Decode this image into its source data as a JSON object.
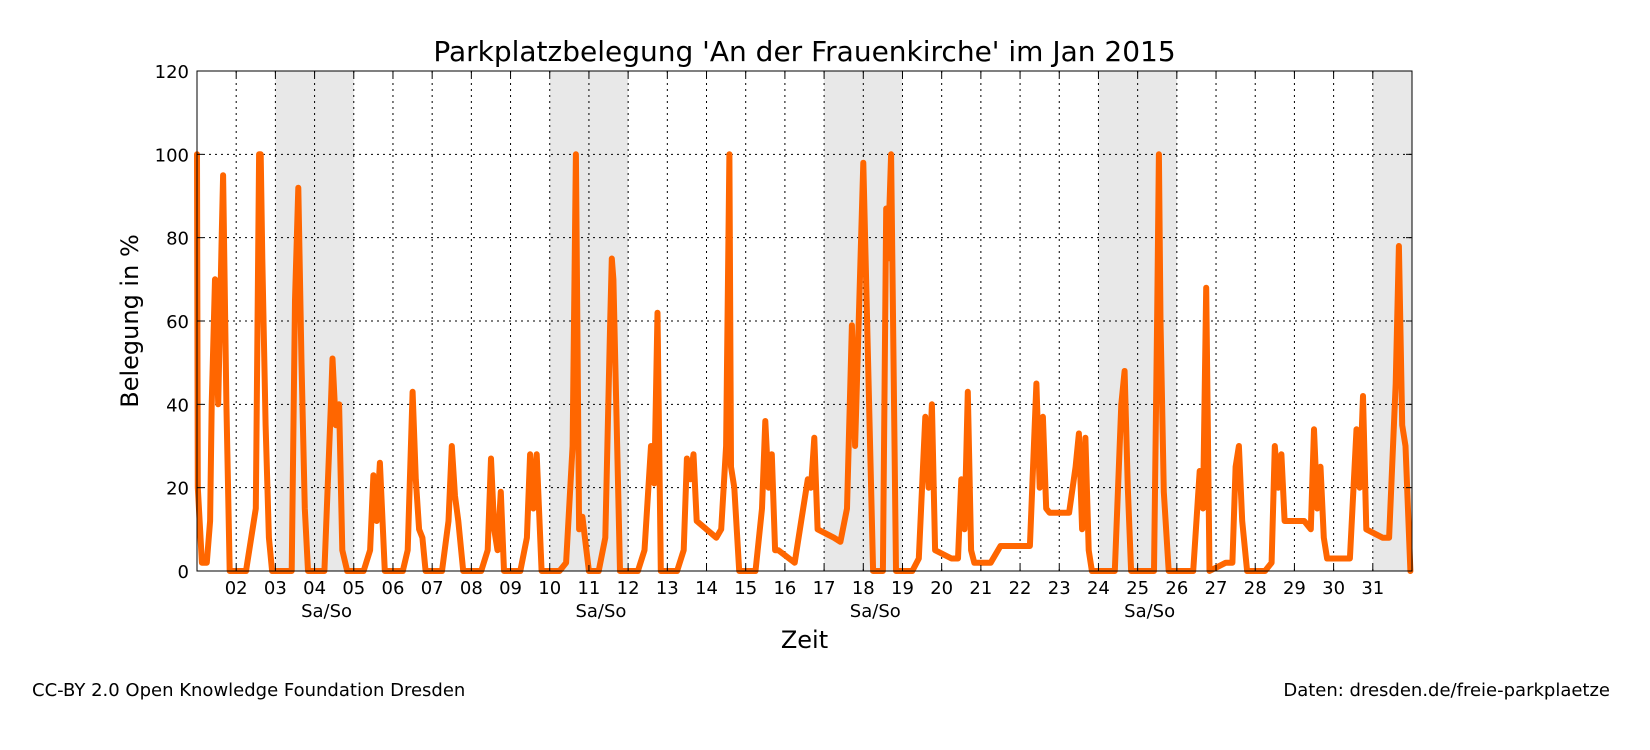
{
  "chart_data": {
    "type": "line",
    "title": "Parkplatzbelegung 'An der Frauenkirche' im Jan 2015",
    "xlabel": "Zeit",
    "ylabel": "Belegung in %",
    "ylim": [
      0,
      120
    ],
    "yticks": [
      "0",
      "20",
      "40",
      "60",
      "80",
      "100",
      "120"
    ],
    "xlim": [
      "2015-01-01",
      "2015-02-01"
    ],
    "xticks": [
      "02",
      "03",
      "04",
      "05",
      "06",
      "07",
      "08",
      "09",
      "10",
      "11",
      "12",
      "13",
      "14",
      "15",
      "16",
      "17",
      "18",
      "19",
      "20",
      "21",
      "22",
      "23",
      "24",
      "25",
      "26",
      "27",
      "28",
      "29",
      "30",
      "31"
    ],
    "weekend_label": "Sa/So",
    "grid": true,
    "line_color": "#ff6600",
    "weekend_shade_color": "#e8e8e8",
    "weekend_ranges": [
      [
        "2015-01-03",
        "2015-01-05"
      ],
      [
        "2015-01-10",
        "2015-01-12"
      ],
      [
        "2015-01-17",
        "2015-01-19"
      ],
      [
        "2015-01-24",
        "2015-01-26"
      ],
      [
        "2015-01-31",
        "2015-02-01"
      ]
    ],
    "weekend_label_dates": [
      "2015-01-04",
      "2015-01-11",
      "2015-01-18",
      "2015-01-25"
    ],
    "series": [
      {
        "x": [
          "2015-01-01 00:00",
          "2015-01-01 00:30",
          "2015-01-01 03:00",
          "2015-01-01 06:00",
          "2015-01-01 08:00",
          "2015-01-01 09:00",
          "2015-01-01 11:00",
          "2015-01-01 13:00",
          "2015-01-01 15:00",
          "2015-01-01 16:00",
          "2015-01-01 18:00",
          "2015-01-01 20:00",
          "2015-01-01 21:00",
          "2015-01-01 22:00",
          "2015-01-02 00:00",
          "2015-01-02 06:00",
          "2015-01-02 12:00",
          "2015-01-02 14:00",
          "2015-01-02 15:00",
          "2015-01-02 16:00",
          "2015-01-02 18:00",
          "2015-01-02 20:00",
          "2015-01-02 22:00",
          "2015-01-03 00:00",
          "2015-01-03 06:00",
          "2015-01-03 10:00",
          "2015-01-03 12:00",
          "2015-01-03 14:00",
          "2015-01-03 16:00",
          "2015-01-03 18:00",
          "2015-01-03 20:00",
          "2015-01-04 00:00",
          "2015-01-04 06:00",
          "2015-01-04 10:00",
          "2015-01-04 11:00",
          "2015-01-04 13:00",
          "2015-01-04 15:00",
          "2015-01-04 17:00",
          "2015-01-04 20:00",
          "2015-01-05 06:00",
          "2015-01-05 10:00",
          "2015-01-05 12:00",
          "2015-01-05 14:00",
          "2015-01-05 16:00",
          "2015-01-05 19:00",
          "2015-01-06 06:00",
          "2015-01-06 09:00",
          "2015-01-06 12:00",
          "2015-01-06 14:00",
          "2015-01-06 16:00",
          "2015-01-06 18:00",
          "2015-01-06 20:00",
          "2015-01-07 06:00",
          "2015-01-07 10:00",
          "2015-01-07 12:00",
          "2015-01-07 14:00",
          "2015-01-07 16:00",
          "2015-01-07 19:00",
          "2015-01-08 06:00",
          "2015-01-08 10:00",
          "2015-01-08 12:00",
          "2015-01-08 14:00",
          "2015-01-08 16:00",
          "2015-01-08 18:00",
          "2015-01-08 20:00",
          "2015-01-09 06:00",
          "2015-01-09 10:00",
          "2015-01-09 12:00",
          "2015-01-09 14:00",
          "2015-01-09 16:00",
          "2015-01-09 19:00",
          "2015-01-10 06:00",
          "2015-01-10 10:00",
          "2015-01-10 14:00",
          "2015-01-10 16:00",
          "2015-01-10 18:00",
          "2015-01-10 20:00",
          "2015-01-11 00:00",
          "2015-01-11 06:00",
          "2015-01-11 10:00",
          "2015-01-11 13:00",
          "2015-01-11 14:00",
          "2015-01-11 15:00",
          "2015-01-11 19:00",
          "2015-01-12 06:00",
          "2015-01-12 10:00",
          "2015-01-12 14:00",
          "2015-01-12 16:00",
          "2015-01-12 18:00",
          "2015-01-12 20:00",
          "2015-01-13 06:00",
          "2015-01-13 10:00",
          "2015-01-13 12:00",
          "2015-01-13 14:00",
          "2015-01-13 16:00",
          "2015-01-13 18:00",
          "2015-01-14 06:00",
          "2015-01-14 09:00",
          "2015-01-14 12:00",
          "2015-01-14 14:00",
          "2015-01-14 15:00",
          "2015-01-14 17:00",
          "2015-01-14 20:00",
          "2015-01-15 06:00",
          "2015-01-15 10:00",
          "2015-01-15 12:00",
          "2015-01-15 14:00",
          "2015-01-15 16:00",
          "2015-01-15 18:00",
          "2015-01-15 20:00",
          "2015-01-16 06:00",
          "2015-01-16 10:00",
          "2015-01-16 14:00",
          "2015-01-16 16:00",
          "2015-01-16 18:00",
          "2015-01-16 20:00",
          "2015-01-17 06:00",
          "2015-01-17 10:00",
          "2015-01-17 14:00",
          "2015-01-17 17:00",
          "2015-01-17 19:00",
          "2015-01-18 00:00",
          "2015-01-18 06:00",
          "2015-01-18 10:00",
          "2015-01-18 12:00",
          "2015-01-18 14:00",
          "2015-01-18 15:00",
          "2015-01-18 17:00",
          "2015-01-18 20:00",
          "2015-01-19 06:00",
          "2015-01-19 10:00",
          "2015-01-19 14:00",
          "2015-01-19 16:00",
          "2015-01-19 18:00",
          "2015-01-19 20:00",
          "2015-01-20 06:00",
          "2015-01-20 10:00",
          "2015-01-20 12:00",
          "2015-01-20 14:00",
          "2015-01-20 16:00",
          "2015-01-20 18:00",
          "2015-01-20 20:00",
          "2015-01-21 06:00",
          "2015-01-21 12:00",
          "2015-01-21 18:00",
          "2015-01-22 06:00",
          "2015-01-22 10:00",
          "2015-01-22 12:00",
          "2015-01-22 14:00",
          "2015-01-22 16:00",
          "2015-01-22 18:00",
          "2015-01-22 20:00",
          "2015-01-23 06:00",
          "2015-01-23 10:00",
          "2015-01-23 12:00",
          "2015-01-23 14:00",
          "2015-01-23 16:00",
          "2015-01-23 18:00",
          "2015-01-23 20:00",
          "2015-01-24 06:00",
          "2015-01-24 10:00",
          "2015-01-24 14:00",
          "2015-01-24 16:00",
          "2015-01-24 18:00",
          "2015-01-24 20:00",
          "2015-01-25 06:00",
          "2015-01-25 10:00",
          "2015-01-25 12:00",
          "2015-01-25 13:00",
          "2015-01-25 14:00",
          "2015-01-25 16:00",
          "2015-01-25 19:00",
          "2015-01-26 06:00",
          "2015-01-26 10:00",
          "2015-01-26 14:00",
          "2015-01-26 16:00",
          "2015-01-26 18:00",
          "2015-01-26 20:00",
          "2015-01-27 06:00",
          "2015-01-27 10:00",
          "2015-01-27 12:00",
          "2015-01-27 14:00",
          "2015-01-27 16:00",
          "2015-01-27 19:00",
          "2015-01-28 06:00",
          "2015-01-28 10:00",
          "2015-01-28 12:00",
          "2015-01-28 14:00",
          "2015-01-28 16:00",
          "2015-01-28 18:00",
          "2015-01-28 20:00",
          "2015-01-29 06:00",
          "2015-01-29 10:00",
          "2015-01-29 12:00",
          "2015-01-29 14:00",
          "2015-01-29 16:00",
          "2015-01-29 18:00",
          "2015-01-29 20:00",
          "2015-01-30 06:00",
          "2015-01-30 10:00",
          "2015-01-30 14:00",
          "2015-01-30 16:00",
          "2015-01-30 18:00",
          "2015-01-30 20:00",
          "2015-01-31 06:00",
          "2015-01-31 10:00",
          "2015-01-31 14:00",
          "2015-01-31 16:00",
          "2015-01-31 18:00",
          "2015-01-31 20:00",
          "2015-01-31 23:00"
        ],
        "y": [
          100,
          20,
          2,
          2,
          12,
          40,
          70,
          40,
          78,
          95,
          40,
          0,
          0,
          0,
          0,
          0,
          15,
          100,
          100,
          75,
          35,
          8,
          0,
          0,
          0,
          0,
          65,
          92,
          50,
          15,
          0,
          0,
          0,
          40,
          51,
          35,
          40,
          5,
          0,
          0,
          5,
          23,
          12,
          26,
          0,
          0,
          5,
          43,
          22,
          10,
          8,
          0,
          0,
          12,
          30,
          18,
          12,
          0,
          0,
          5,
          27,
          10,
          5,
          19,
          0,
          0,
          8,
          28,
          15,
          28,
          0,
          0,
          2,
          30,
          100,
          10,
          13,
          0,
          0,
          8,
          60,
          75,
          70,
          0,
          0,
          5,
          30,
          21,
          62,
          0,
          0,
          5,
          27,
          22,
          28,
          12,
          8,
          10,
          30,
          100,
          25,
          20,
          0,
          0,
          15,
          36,
          20,
          28,
          5,
          5,
          2,
          12,
          22,
          20,
          32,
          10,
          8,
          7,
          15,
          59,
          30,
          98,
          0,
          0,
          0,
          87,
          75,
          100,
          0,
          0,
          3,
          37,
          20,
          40,
          5,
          3,
          3,
          22,
          10,
          43,
          5,
          2,
          2,
          6,
          6,
          6,
          45,
          20,
          37,
          15,
          14,
          14,
          14,
          25,
          33,
          10,
          32,
          5,
          0,
          0,
          0,
          40,
          48,
          20,
          0,
          0,
          0,
          62,
          100,
          60,
          19,
          0,
          0,
          0,
          24,
          15,
          68,
          0,
          2,
          2,
          25,
          30,
          12,
          0,
          0,
          2,
          30,
          20,
          28,
          12,
          12,
          12,
          10,
          34,
          15,
          25,
          8,
          3,
          3,
          3,
          34,
          20,
          42,
          10,
          8,
          8,
          45,
          78,
          35,
          30,
          0
        ]
      }
    ]
  },
  "footer": {
    "left": "CC-BY 2.0 Open Knowledge Foundation Dresden",
    "right": "Daten: dresden.de/freie-parkplaetze"
  }
}
